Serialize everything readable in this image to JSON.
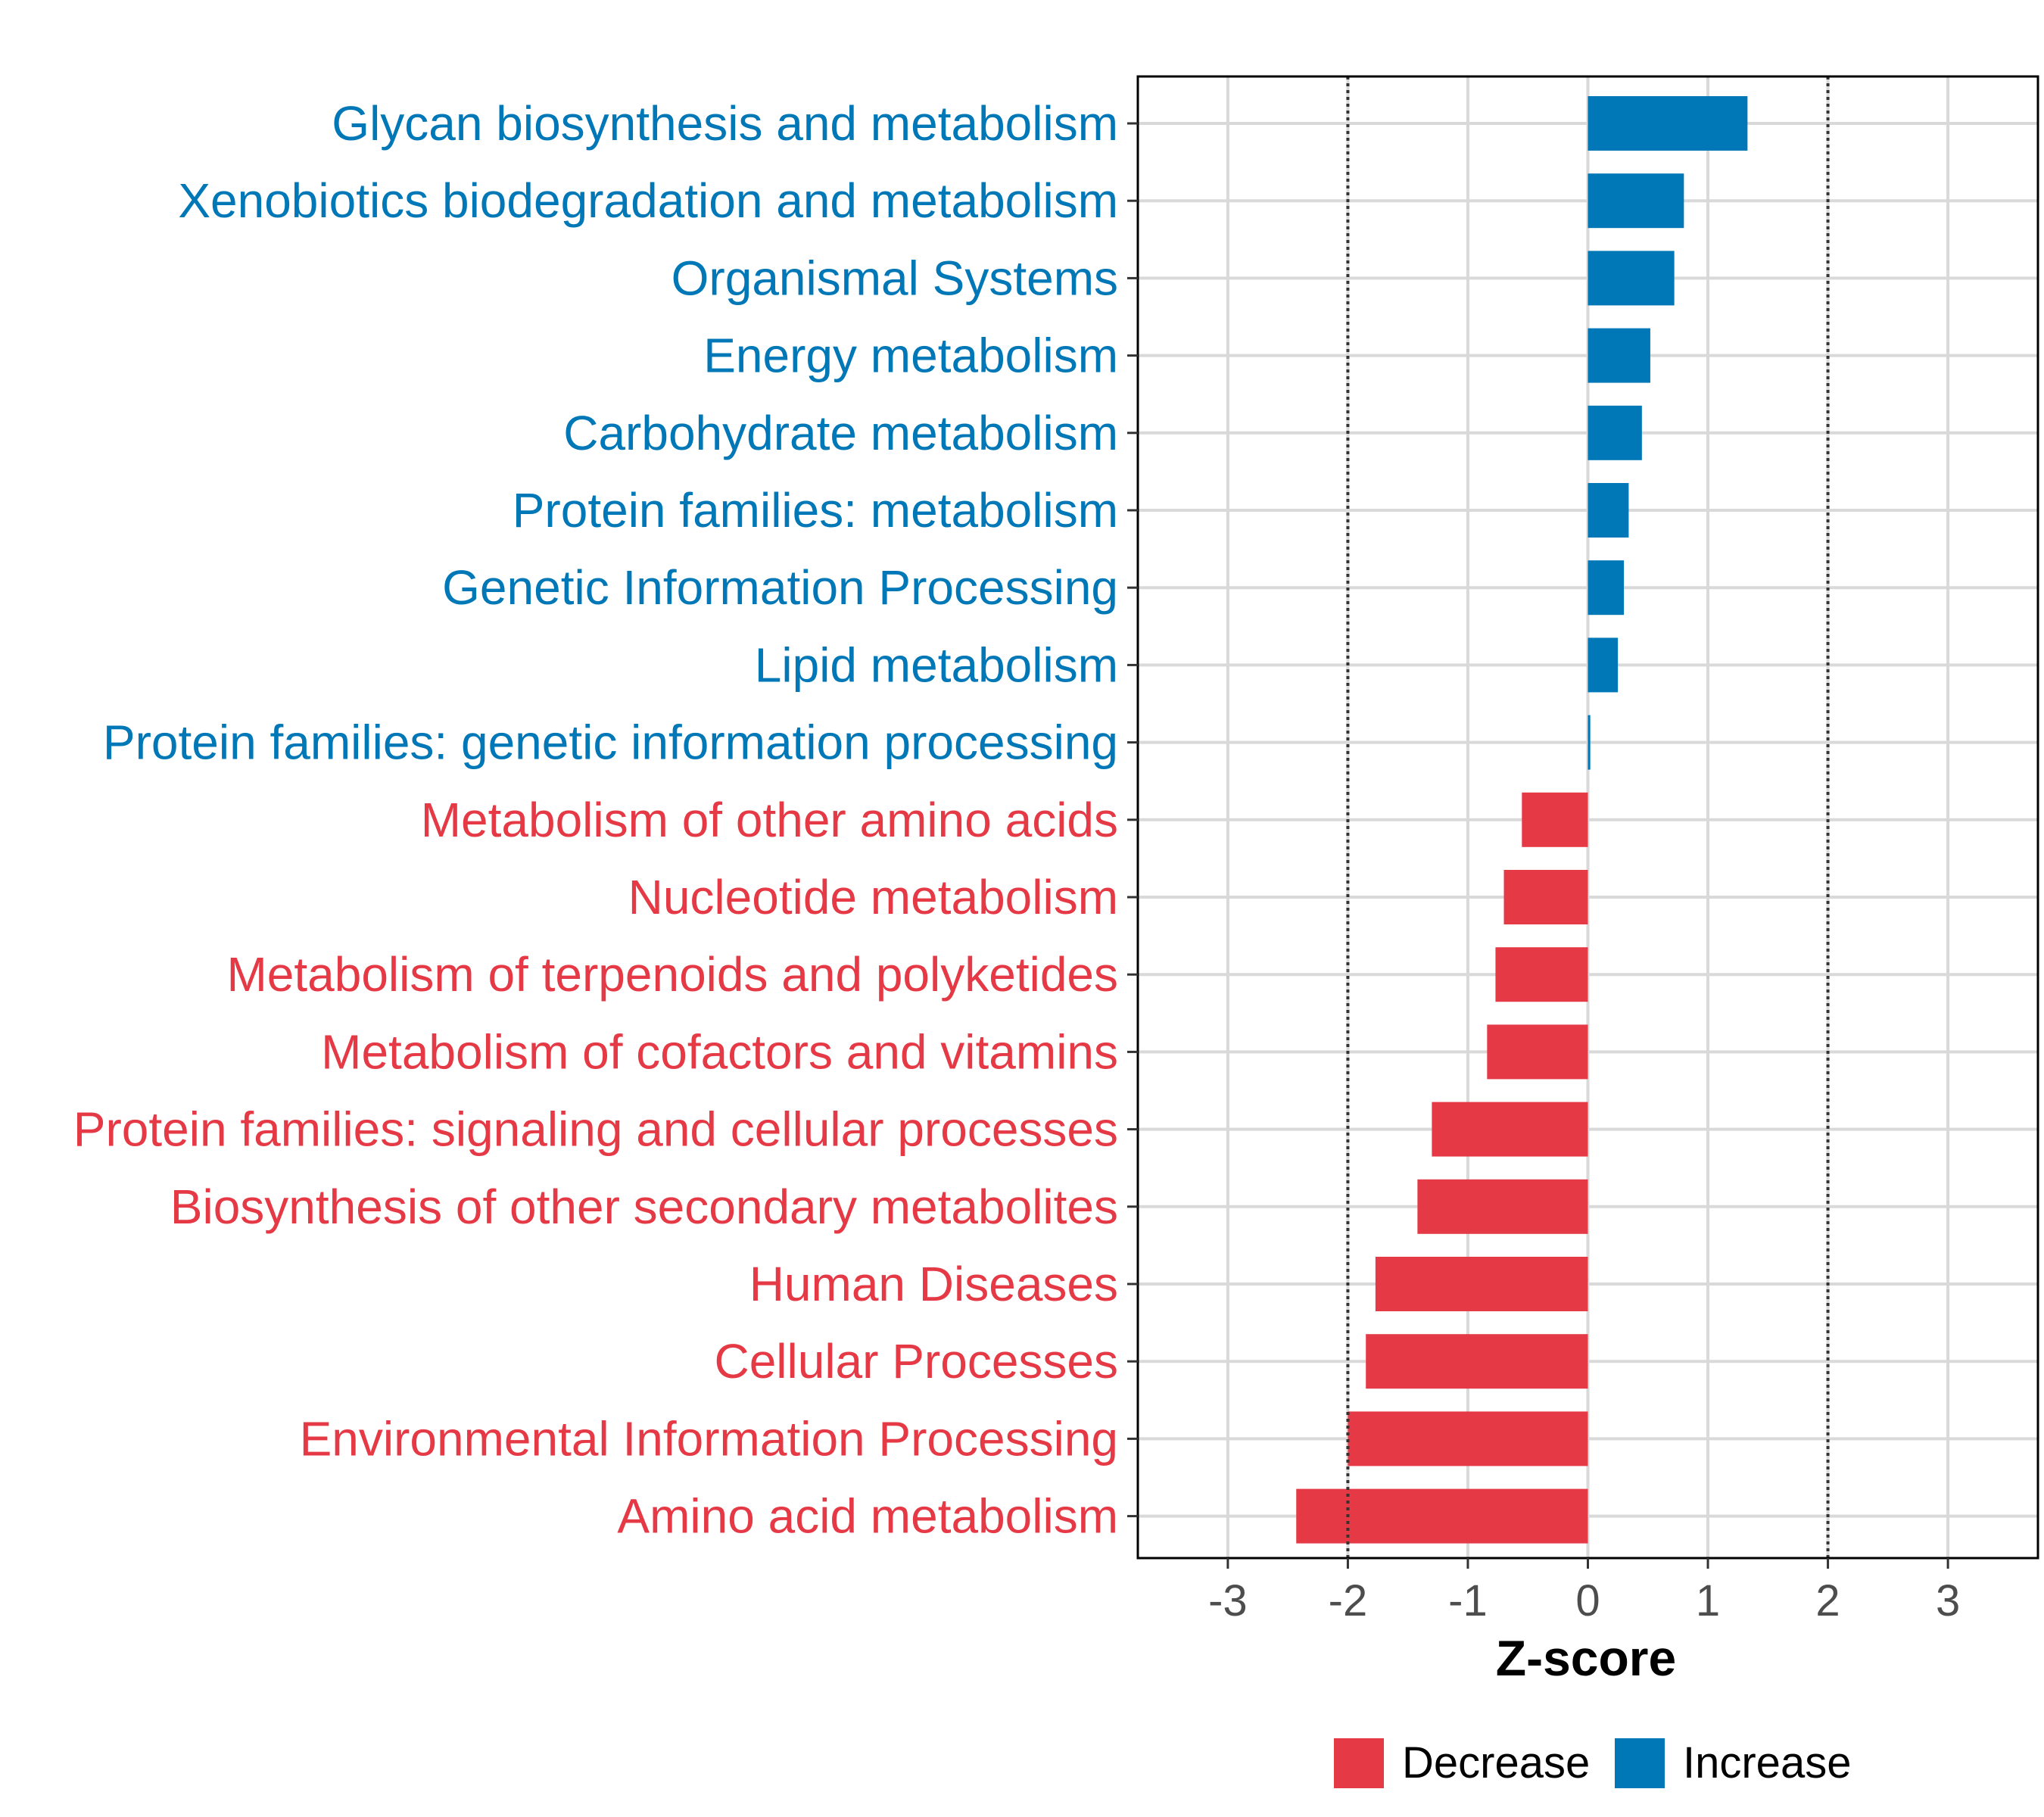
{
  "chart_data": {
    "type": "bar",
    "orientation": "horizontal",
    "title": "",
    "xlabel": "Z-score",
    "ylabel": "",
    "xlim": [
      -3.75,
      3.75
    ],
    "xticks": [
      -3,
      -2,
      -1,
      0,
      1,
      2,
      3
    ],
    "xtick_labels": [
      "-3",
      "-2",
      "-1",
      "0",
      "1",
      "2",
      "3"
    ],
    "reference_lines": [
      -2,
      2
    ],
    "grid": true,
    "categories": [
      "Glycan biosynthesis and metabolism",
      "Xenobiotics biodegradation and metabolism",
      "Organismal Systems",
      "Energy metabolism",
      "Carbohydrate metabolism",
      "Protein families: metabolism",
      "Genetic Information Processing",
      "Lipid metabolism",
      "Protein families: genetic information processing",
      "Metabolism of other amino acids",
      "Nucleotide metabolism",
      "Metabolism of terpenoids and polyketides",
      "Metabolism of cofactors and vitamins",
      "Protein families: signaling and cellular processes",
      "Biosynthesis of other secondary metabolites",
      "Human Diseases",
      "Cellular Processes",
      "Environmental Information Processing",
      "Amino acid metabolism"
    ],
    "values": [
      1.33,
      0.8,
      0.72,
      0.52,
      0.45,
      0.34,
      0.3,
      0.25,
      0.02,
      -0.55,
      -0.7,
      -0.77,
      -0.84,
      -1.3,
      -1.42,
      -1.77,
      -1.85,
      -2.0,
      -2.43
    ],
    "groups": [
      "Increase",
      "Increase",
      "Increase",
      "Increase",
      "Increase",
      "Increase",
      "Increase",
      "Increase",
      "Increase",
      "Decrease",
      "Decrease",
      "Decrease",
      "Decrease",
      "Decrease",
      "Decrease",
      "Decrease",
      "Decrease",
      "Decrease",
      "Decrease"
    ],
    "legend": {
      "position": "bottom",
      "entries": [
        {
          "label": "Decrease",
          "color": "#e63946"
        },
        {
          "label": "Increase",
          "color": "#0077b6"
        }
      ]
    },
    "colors": {
      "Decrease": "#e63946",
      "Increase": "#0077b6"
    }
  }
}
